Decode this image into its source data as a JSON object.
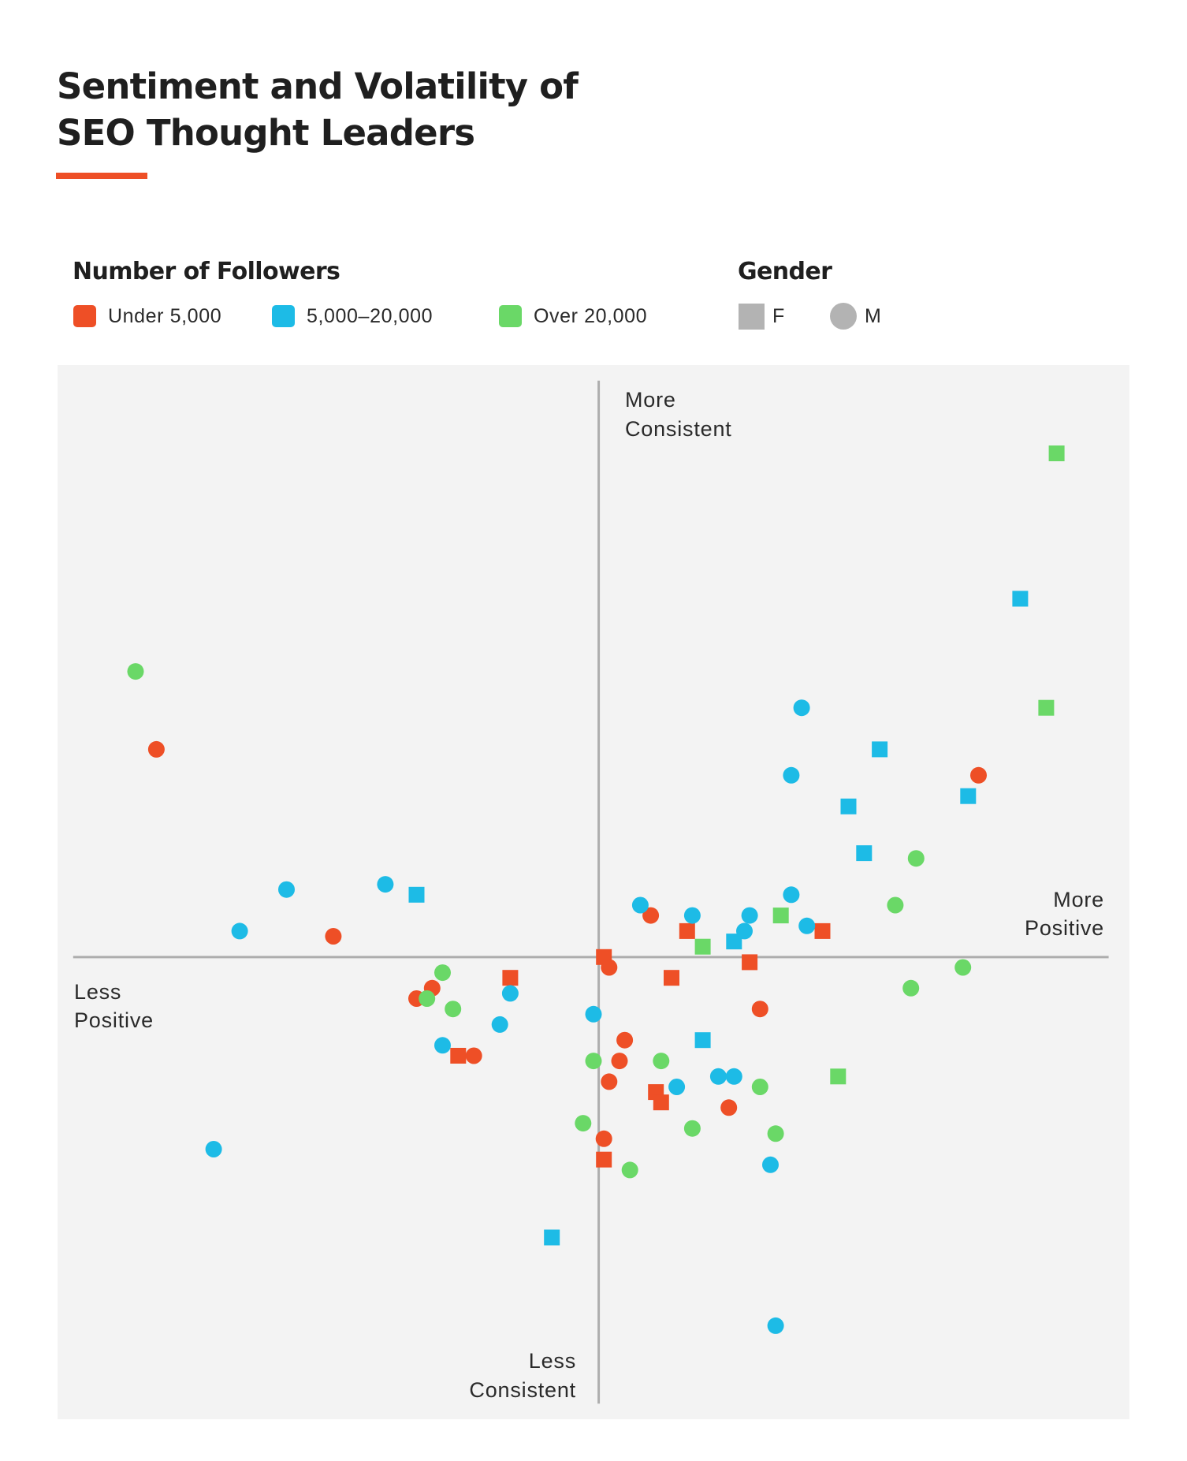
{
  "title": {
    "line1": "Sentiment and Volatility of",
    "line2": "SEO Thought Leaders"
  },
  "legend": {
    "followers_heading": "Number of Followers",
    "followers": [
      {
        "label": "Under 5,000",
        "color": "#EE4F26",
        "key": "under_5k"
      },
      {
        "label": "5,000–20,000",
        "color": "#1DBBE6",
        "key": "5k_20k"
      },
      {
        "label": "Over 20,000",
        "color": "#6AD867",
        "key": "over_20k"
      }
    ],
    "gender_heading": "Gender",
    "gender": [
      {
        "label": "F",
        "shape": "square"
      },
      {
        "label": "M",
        "shape": "circle"
      }
    ]
  },
  "colors": {
    "under_5k": "#EE4F26",
    "5k_20k": "#1DBBE6",
    "over_20k": "#6AD867",
    "axis": "#ADADAD",
    "plot_background": "#F3F3F3",
    "accent": "#EE4F26"
  },
  "chart_data": {
    "type": "scatter",
    "title": "Sentiment and Volatility of SEO Thought Leaders",
    "xlabel_negative": [
      "Less",
      "Positive"
    ],
    "xlabel_positive": [
      "More",
      "Positive"
    ],
    "ylabel_positive": [
      "More",
      "Consistent"
    ],
    "ylabel_negative": [
      "Less",
      "Consistent"
    ],
    "xlim": [
      -1.04,
      1.02
    ],
    "ylim": [
      -0.89,
      1.14
    ],
    "x_axis_extent": [
      -1.01,
      0.98
    ],
    "y_axis_extent": [
      -0.86,
      1.11
    ],
    "grid": false,
    "legend_placement": "top",
    "series": [
      {
        "name": "Under 5,000",
        "key": "under_5k",
        "points": [
          {
            "x": -0.85,
            "y": 0.4,
            "gender": "M"
          },
          {
            "x": -0.51,
            "y": 0.04,
            "gender": "M"
          },
          {
            "x": -0.35,
            "y": -0.08,
            "gender": "M"
          },
          {
            "x": -0.32,
            "y": -0.06,
            "gender": "M"
          },
          {
            "x": -0.27,
            "y": -0.19,
            "gender": "F"
          },
          {
            "x": -0.24,
            "y": -0.19,
            "gender": "M"
          },
          {
            "x": -0.17,
            "y": -0.04,
            "gender": "F"
          },
          {
            "x": 0.01,
            "y": 0.0,
            "gender": "F"
          },
          {
            "x": 0.02,
            "y": -0.02,
            "gender": "M"
          },
          {
            "x": 0.1,
            "y": 0.08,
            "gender": "M"
          },
          {
            "x": 0.17,
            "y": 0.05,
            "gender": "F"
          },
          {
            "x": 0.14,
            "y": -0.04,
            "gender": "F"
          },
          {
            "x": 0.29,
            "y": -0.01,
            "gender": "F"
          },
          {
            "x": 0.43,
            "y": 0.05,
            "gender": "F"
          },
          {
            "x": 0.31,
            "y": -0.1,
            "gender": "M"
          },
          {
            "x": 0.05,
            "y": -0.16,
            "gender": "M"
          },
          {
            "x": 0.04,
            "y": -0.2,
            "gender": "M"
          },
          {
            "x": 0.02,
            "y": -0.24,
            "gender": "M"
          },
          {
            "x": 0.11,
            "y": -0.26,
            "gender": "F"
          },
          {
            "x": 0.12,
            "y": -0.28,
            "gender": "F"
          },
          {
            "x": 0.25,
            "y": -0.29,
            "gender": "M"
          },
          {
            "x": 0.01,
            "y": -0.35,
            "gender": "M"
          },
          {
            "x": 0.01,
            "y": -0.39,
            "gender": "F"
          },
          {
            "x": 0.73,
            "y": 0.35,
            "gender": "M"
          }
        ]
      },
      {
        "name": "5,000–20,000",
        "key": "5k_20k",
        "points": [
          {
            "x": -0.6,
            "y": 0.13,
            "gender": "M"
          },
          {
            "x": -0.69,
            "y": 0.05,
            "gender": "M"
          },
          {
            "x": -0.41,
            "y": 0.14,
            "gender": "M"
          },
          {
            "x": -0.35,
            "y": 0.12,
            "gender": "F"
          },
          {
            "x": -0.17,
            "y": -0.07,
            "gender": "M"
          },
          {
            "x": -0.19,
            "y": -0.13,
            "gender": "M"
          },
          {
            "x": -0.3,
            "y": -0.17,
            "gender": "M"
          },
          {
            "x": -0.74,
            "y": -0.37,
            "gender": "M"
          },
          {
            "x": -0.09,
            "y": -0.54,
            "gender": "F"
          },
          {
            "x": -0.01,
            "y": -0.11,
            "gender": "M"
          },
          {
            "x": 0.08,
            "y": 0.1,
            "gender": "M"
          },
          {
            "x": 0.18,
            "y": 0.08,
            "gender": "M"
          },
          {
            "x": 0.29,
            "y": 0.08,
            "gender": "M"
          },
          {
            "x": 0.28,
            "y": 0.05,
            "gender": "M"
          },
          {
            "x": 0.26,
            "y": 0.03,
            "gender": "F"
          },
          {
            "x": 0.37,
            "y": 0.12,
            "gender": "M"
          },
          {
            "x": 0.4,
            "y": 0.06,
            "gender": "M"
          },
          {
            "x": 0.2,
            "y": -0.16,
            "gender": "F"
          },
          {
            "x": 0.15,
            "y": -0.25,
            "gender": "M"
          },
          {
            "x": 0.23,
            "y": -0.23,
            "gender": "M"
          },
          {
            "x": 0.26,
            "y": -0.23,
            "gender": "M"
          },
          {
            "x": 0.33,
            "y": -0.4,
            "gender": "M"
          },
          {
            "x": 0.34,
            "y": -0.71,
            "gender": "M"
          },
          {
            "x": 0.39,
            "y": 0.48,
            "gender": "M"
          },
          {
            "x": 0.37,
            "y": 0.35,
            "gender": "M"
          },
          {
            "x": 0.54,
            "y": 0.4,
            "gender": "F"
          },
          {
            "x": 0.48,
            "y": 0.29,
            "gender": "F"
          },
          {
            "x": 0.51,
            "y": 0.2,
            "gender": "F"
          },
          {
            "x": 0.71,
            "y": 0.31,
            "gender": "F"
          },
          {
            "x": 0.81,
            "y": 0.69,
            "gender": "F"
          }
        ]
      },
      {
        "name": "Over 20,000",
        "key": "over_20k",
        "points": [
          {
            "x": -0.89,
            "y": 0.55,
            "gender": "M"
          },
          {
            "x": -0.3,
            "y": -0.03,
            "gender": "M"
          },
          {
            "x": -0.33,
            "y": -0.08,
            "gender": "M"
          },
          {
            "x": -0.28,
            "y": -0.1,
            "gender": "M"
          },
          {
            "x": -0.01,
            "y": -0.2,
            "gender": "M"
          },
          {
            "x": 0.12,
            "y": -0.2,
            "gender": "M"
          },
          {
            "x": -0.03,
            "y": -0.32,
            "gender": "M"
          },
          {
            "x": 0.18,
            "y": -0.33,
            "gender": "M"
          },
          {
            "x": 0.06,
            "y": -0.41,
            "gender": "M"
          },
          {
            "x": 0.31,
            "y": -0.25,
            "gender": "M"
          },
          {
            "x": 0.34,
            "y": -0.34,
            "gender": "M"
          },
          {
            "x": 0.2,
            "y": 0.02,
            "gender": "F"
          },
          {
            "x": 0.35,
            "y": 0.08,
            "gender": "F"
          },
          {
            "x": 0.46,
            "y": -0.23,
            "gender": "F"
          },
          {
            "x": 0.57,
            "y": 0.1,
            "gender": "M"
          },
          {
            "x": 0.61,
            "y": 0.19,
            "gender": "M"
          },
          {
            "x": 0.6,
            "y": -0.06,
            "gender": "M"
          },
          {
            "x": 0.7,
            "y": -0.02,
            "gender": "M"
          },
          {
            "x": 0.86,
            "y": 0.48,
            "gender": "F"
          },
          {
            "x": 0.88,
            "y": 0.97,
            "gender": "F"
          }
        ]
      }
    ]
  }
}
